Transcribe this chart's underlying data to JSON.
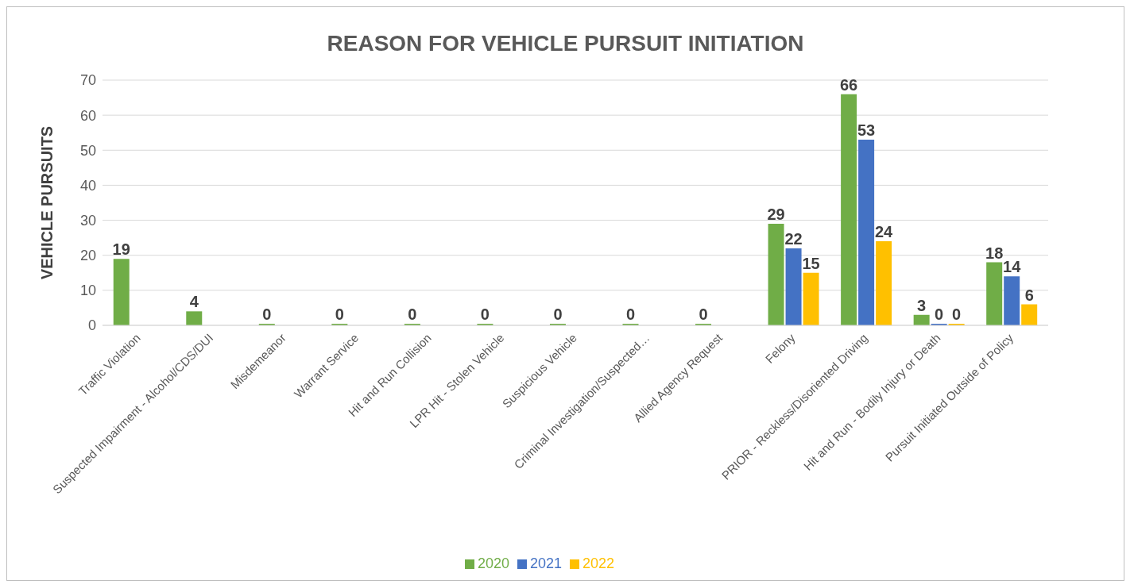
{
  "chart_data": {
    "type": "bar",
    "title": "REASON FOR VEHICLE PURSUIT INITIATION",
    "ylabel": "VEHICLE PURSUITS",
    "categories": [
      "Traffic Violation",
      "Suspected Impairment - Alcohol/CDS/DUI",
      "Misdemeanor",
      "Warrant Service",
      "Hit and Run Collision",
      "LPR Hit - Stolen Vehicle",
      "Suspicious Vehicle",
      "Criminal Investigation/Suspected…",
      "Allied Agency Request",
      "Felony",
      "PRIOR - Reckless/Disoriented Driving",
      "Hit and Run - Bodily Injury or Death",
      "Pursuit Initiated Outside of Policy"
    ],
    "series": [
      {
        "name": "2020",
        "color": "#70ad47",
        "values": [
          19,
          4,
          0,
          0,
          0,
          0,
          0,
          0,
          0,
          29,
          66,
          3,
          18
        ]
      },
      {
        "name": "2021",
        "color": "#4472c4",
        "values": [
          null,
          null,
          null,
          null,
          null,
          null,
          null,
          null,
          null,
          22,
          53,
          0,
          14
        ]
      },
      {
        "name": "2022",
        "color": "#ffc000",
        "values": [
          null,
          null,
          null,
          null,
          null,
          null,
          null,
          null,
          null,
          15,
          24,
          0,
          6
        ]
      }
    ],
    "ylim": [
      0,
      70
    ],
    "yticks": [
      0,
      10,
      20,
      30,
      40,
      50,
      60,
      70
    ],
    "grid": "y",
    "legend": "bottom",
    "data_labels": true
  }
}
